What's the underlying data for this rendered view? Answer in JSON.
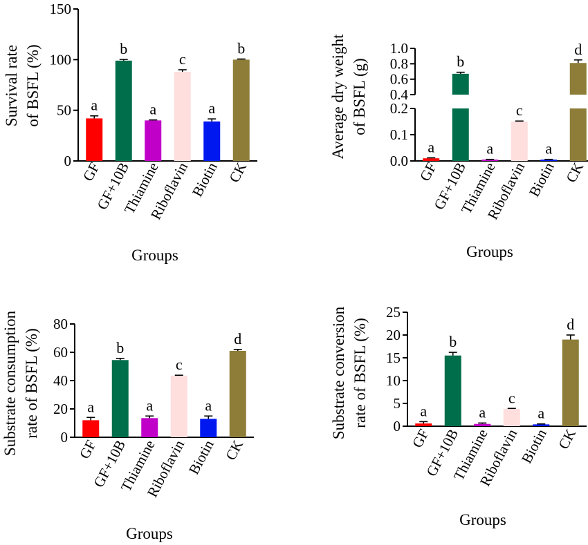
{
  "chart_data": [
    {
      "type": "bar",
      "categories": [
        "GF",
        "GF+10B",
        "Thiamine",
        "Riboflavin",
        "Biotin",
        "CK"
      ],
      "values": [
        42,
        99,
        40,
        88,
        39,
        100
      ],
      "errors": [
        2.5,
        1.2,
        0.5,
        2.0,
        2.5,
        0.6
      ],
      "significance": [
        "a",
        "b",
        "a",
        "c",
        "a",
        "b"
      ],
      "ylabel_lines": [
        "Survival rate",
        "of BSFL  (%)"
      ],
      "xlabel": "Groups",
      "ylim": [
        0,
        150
      ],
      "yticks": [
        0,
        50,
        100,
        150
      ],
      "ytick_labels": [
        "0",
        "50",
        "100",
        "150"
      ]
    },
    {
      "type": "bar",
      "broken_axis": true,
      "categories": [
        "GF",
        "GF+10B",
        "Thiamine",
        "Riboflavin",
        "Biotin",
        "CK"
      ],
      "values": [
        0.01,
        0.67,
        0.005,
        0.15,
        0.005,
        0.81
      ],
      "errors": [
        0.002,
        0.02,
        0.001,
        0.002,
        0.001,
        0.04
      ],
      "significance": [
        "a",
        "b",
        "a",
        "c",
        "a",
        "d"
      ],
      "ylabel_lines": [
        "Average dry weight",
        "of BSFL (g)"
      ],
      "xlabel": "Groups",
      "ylim": [
        0,
        1.0
      ],
      "axis_break": [
        0.2,
        0.4
      ],
      "yticks": [
        0.0,
        0.1,
        0.2,
        0.4,
        0.6,
        0.8,
        1.0
      ],
      "ytick_labels": [
        "0.0",
        "0.1",
        "0.2",
        "0.4",
        "0.6",
        "0.8",
        "1.0"
      ]
    },
    {
      "type": "bar",
      "categories": [
        "GF",
        "GF+10B",
        "Thiamine",
        "Riboflavin",
        "Biotin",
        "CK"
      ],
      "values": [
        12,
        54.5,
        13.5,
        43.5,
        13,
        61
      ],
      "errors": [
        2,
        1.2,
        1.5,
        0.3,
        2,
        1
      ],
      "significance": [
        "a",
        "b",
        "a",
        "c",
        "a",
        "d"
      ],
      "ylabel_lines": [
        "Substrate consumption",
        "rate of BSFL  (%)"
      ],
      "xlabel": "Groups",
      "ylim": [
        0,
        80
      ],
      "yticks": [
        0,
        20,
        40,
        60,
        80
      ],
      "ytick_labels": [
        "0",
        "20",
        "40",
        "60",
        "80"
      ]
    },
    {
      "type": "bar",
      "categories": [
        "GF",
        "GF+10B",
        "Thiamine",
        "Riboflavin",
        "Biotin",
        "CK"
      ],
      "values": [
        0.6,
        15.5,
        0.5,
        3.8,
        0.4,
        19
      ],
      "errors": [
        0.4,
        0.7,
        0.2,
        0.1,
        0.1,
        1.0
      ],
      "significance": [
        "a",
        "b",
        "a",
        "c",
        "a",
        "d"
      ],
      "ylabel_lines": [
        "Substrate conversion",
        "rate of BSFL (%)"
      ],
      "xlabel": "Groups",
      "ylim": [
        0,
        25
      ],
      "yticks": [
        0,
        5,
        10,
        15,
        20,
        25
      ],
      "ytick_labels": [
        "0",
        "5",
        "10",
        "15",
        "20",
        "25"
      ]
    }
  ],
  "colors": [
    "#ff0000",
    "#006e4a",
    "#c000c8",
    "#ffdede",
    "#0018f0",
    "#8d7d38"
  ]
}
